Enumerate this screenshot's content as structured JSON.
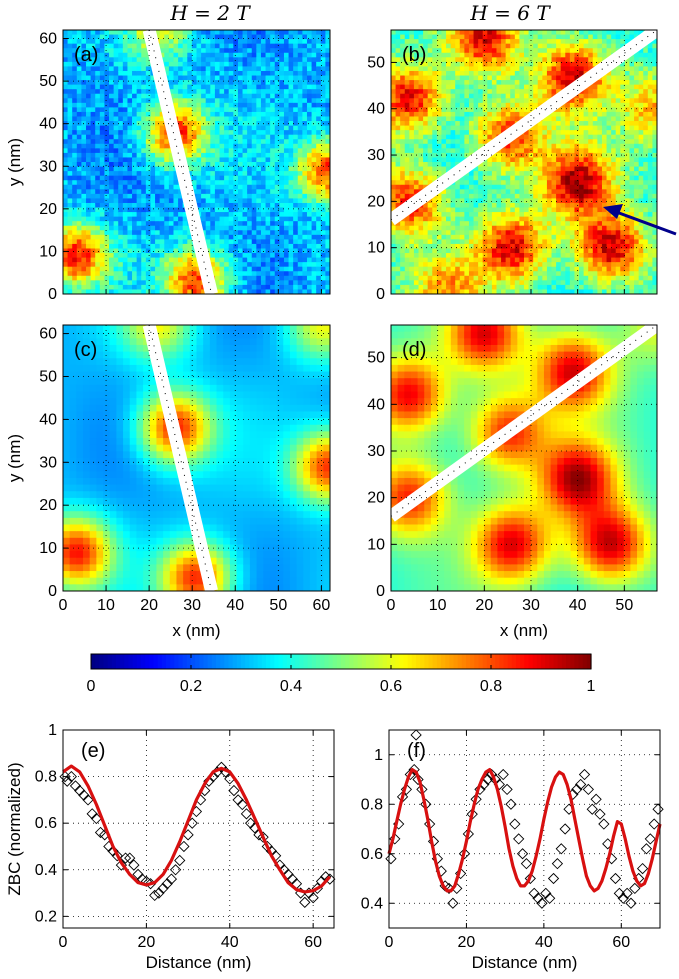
{
  "column_titles": [
    "H = 2 T",
    "H = 6 T"
  ],
  "chart_data": [
    {
      "type": "heatmap",
      "panel_label": "(a)",
      "xlim": [
        0,
        62
      ],
      "ylim": [
        0,
        62
      ],
      "yticks": [
        0,
        10,
        20,
        30,
        40,
        50,
        60
      ],
      "ylabel": "y (nm)",
      "vortices": [
        [
          3,
          9,
          0.85
        ],
        [
          26,
          38,
          0.85
        ],
        [
          62,
          29,
          0.85
        ],
        [
          31,
          3,
          0.85
        ],
        [
          22,
          62,
          0.6
        ]
      ],
      "background": 0.3,
      "noise": true,
      "cut_line": [
        [
          20,
          62
        ],
        [
          34.5,
          0
        ]
      ],
      "grid": true
    },
    {
      "type": "heatmap",
      "panel_label": "(b)",
      "xlim": [
        0,
        57
      ],
      "ylim": [
        0,
        57
      ],
      "yticks": [
        0,
        10,
        20,
        30,
        40,
        50
      ],
      "vortices": [
        [
          4,
          42,
          0.9
        ],
        [
          20,
          55,
          0.9
        ],
        [
          39,
          47,
          0.9
        ],
        [
          25,
          34,
          0.85
        ],
        [
          40,
          24,
          0.95
        ],
        [
          4,
          20,
          0.85
        ],
        [
          47,
          10,
          0.95
        ],
        [
          26,
          10,
          0.9
        ],
        [
          12,
          1,
          0.7
        ],
        [
          57,
          40,
          0.7
        ]
      ],
      "background": 0.42,
      "noise": true,
      "cut_line": [
        [
          0,
          16
        ],
        [
          57,
          57
        ]
      ],
      "grid": true
    },
    {
      "type": "heatmap",
      "panel_label": "(c)",
      "xlim": [
        0,
        62
      ],
      "ylim": [
        0,
        62
      ],
      "xticks": [
        0,
        10,
        20,
        30,
        40,
        50,
        60
      ],
      "yticks": [
        0,
        10,
        20,
        30,
        40,
        50,
        60
      ],
      "xlabel": "x (nm)",
      "ylabel": "y (nm)",
      "vortices": [
        [
          3,
          9,
          0.85
        ],
        [
          26,
          38,
          0.85
        ],
        [
          62,
          29,
          0.85
        ],
        [
          31,
          3,
          0.85
        ],
        [
          22,
          62,
          0.6
        ],
        [
          60,
          62,
          0.6
        ]
      ],
      "background": 0.3,
      "noise": false,
      "cut_line": [
        [
          20,
          62
        ],
        [
          34.5,
          0
        ]
      ],
      "grid": true
    },
    {
      "type": "heatmap",
      "panel_label": "(d)",
      "xlim": [
        0,
        57
      ],
      "ylim": [
        0,
        57
      ],
      "xticks": [
        0,
        10,
        20,
        30,
        40,
        50
      ],
      "yticks": [
        0,
        10,
        20,
        30,
        40,
        50
      ],
      "xlabel": "x (nm)",
      "vortices": [
        [
          4,
          42,
          0.9
        ],
        [
          20,
          55,
          0.9
        ],
        [
          39,
          47,
          0.9
        ],
        [
          25,
          34,
          0.85
        ],
        [
          40,
          24,
          0.95
        ],
        [
          4,
          20,
          0.85
        ],
        [
          47,
          10,
          0.95
        ],
        [
          26,
          10,
          0.9
        ],
        [
          57,
          57,
          0.6
        ]
      ],
      "background": 0.42,
      "noise": false,
      "cut_line": [
        [
          0,
          16
        ],
        [
          57,
          57
        ]
      ],
      "grid": true
    },
    {
      "type": "colorbar",
      "colormap": "jet",
      "range": [
        0,
        1
      ],
      "ticks": [
        0,
        0.2,
        0.4,
        0.6,
        0.8,
        1
      ]
    },
    {
      "type": "scatter",
      "panel_label": "(e)",
      "xlabel": "Distance (nm)",
      "ylabel": "ZBC (normalized)",
      "xlim": [
        0,
        65
      ],
      "ylim": [
        0.15,
        1.0
      ],
      "xticks": [
        0,
        20,
        40,
        60
      ],
      "yticks": [
        0.2,
        0.4,
        0.6,
        0.8,
        1
      ],
      "grid": true,
      "series": [
        {
          "style": "markers",
          "marker": "diamond",
          "color": "#000000",
          "x": [
            0.5,
            1,
            2,
            3,
            4,
            5,
            6,
            7,
            8,
            9,
            10,
            11,
            12,
            13,
            14,
            15,
            16,
            17,
            18,
            19,
            20,
            21,
            22,
            23,
            24,
            25,
            26,
            27,
            28,
            29,
            30,
            31,
            32,
            33,
            34,
            35,
            36,
            37,
            38,
            39,
            40,
            41,
            42,
            43,
            44,
            45,
            46,
            47,
            48,
            49,
            50,
            51,
            52,
            53,
            54,
            55,
            56,
            57,
            58,
            59,
            60,
            61,
            62,
            63,
            64
          ],
          "y": [
            0.8,
            0.78,
            0.8,
            0.76,
            0.74,
            0.72,
            0.7,
            0.64,
            0.62,
            0.56,
            0.55,
            0.5,
            0.48,
            0.46,
            0.42,
            0.45,
            0.45,
            0.42,
            0.38,
            0.36,
            0.35,
            0.34,
            0.29,
            0.3,
            0.32,
            0.34,
            0.36,
            0.4,
            0.44,
            0.5,
            0.55,
            0.6,
            0.65,
            0.7,
            0.74,
            0.78,
            0.8,
            0.82,
            0.84,
            0.82,
            0.79,
            0.74,
            0.7,
            0.68,
            0.64,
            0.6,
            0.58,
            0.55,
            0.54,
            0.5,
            0.48,
            0.46,
            0.42,
            0.4,
            0.38,
            0.36,
            0.34,
            0.3,
            0.26,
            0.3,
            0.28,
            0.32,
            0.35,
            0.37,
            0.36
          ]
        },
        {
          "style": "line",
          "color": "#d81010",
          "x": [
            0,
            2,
            4,
            6,
            8,
            10,
            12,
            14,
            16,
            18,
            20,
            22,
            24,
            26,
            28,
            30,
            32,
            34,
            36,
            38,
            40,
            42,
            44,
            46,
            48,
            50,
            52,
            54,
            56,
            58,
            60,
            62,
            64
          ],
          "y": [
            0.82,
            0.845,
            0.82,
            0.76,
            0.68,
            0.59,
            0.5,
            0.43,
            0.38,
            0.345,
            0.335,
            0.345,
            0.38,
            0.44,
            0.52,
            0.61,
            0.7,
            0.77,
            0.82,
            0.835,
            0.82,
            0.77,
            0.7,
            0.62,
            0.54,
            0.46,
            0.4,
            0.345,
            0.315,
            0.305,
            0.31,
            0.33,
            0.37
          ]
        }
      ]
    },
    {
      "type": "scatter",
      "panel_label": "(f)",
      "xlabel": "Distance (nm)",
      "xlim": [
        0,
        70
      ],
      "ylim": [
        0.3,
        1.1
      ],
      "xticks": [
        0,
        20,
        40,
        60
      ],
      "yticks": [
        0.4,
        0.6,
        0.8,
        1
      ],
      "grid": true,
      "series": [
        {
          "style": "markers",
          "marker": "diamond",
          "color": "#000000",
          "x": [
            0.5,
            1.5,
            2.5,
            3.5,
            4.5,
            5.5,
            6.5,
            7.5,
            8.5,
            9.5,
            10.5,
            11.5,
            12.5,
            13.5,
            14.5,
            15.5,
            16.5,
            17.5,
            18.5,
            19.5,
            20.5,
            21.5,
            22.5,
            23.5,
            24.5,
            25.5,
            26.5,
            27.5,
            28.5,
            29.5,
            30.5,
            31.5,
            32.5,
            33.5,
            34.5,
            35.5,
            36.5,
            37.5,
            38.5,
            39.5,
            40.5,
            41.5,
            42.5,
            43.5,
            44.5,
            45.5,
            46.5,
            47.5,
            48.5,
            49.5,
            50.5,
            51.5,
            52.5,
            53.5,
            54.5,
            55.5,
            56.5,
            57.5,
            58.5,
            59.5,
            60.5,
            61.5,
            62.5,
            63.5,
            64.5,
            65.5,
            66.5,
            67.5,
            68.5,
            69.5,
            7
          ],
          "y": [
            0.58,
            0.66,
            0.72,
            0.83,
            0.86,
            0.92,
            0.94,
            0.9,
            0.86,
            0.8,
            0.72,
            0.65,
            0.58,
            0.53,
            0.47,
            0.46,
            0.4,
            0.46,
            0.52,
            0.6,
            0.68,
            0.76,
            0.82,
            0.86,
            0.88,
            0.9,
            0.92,
            0.9,
            0.88,
            0.92,
            0.86,
            0.8,
            0.72,
            0.66,
            0.6,
            0.56,
            0.5,
            0.44,
            0.42,
            0.4,
            0.44,
            0.42,
            0.5,
            0.56,
            0.62,
            0.7,
            0.78,
            0.84,
            0.86,
            0.88,
            0.92,
            0.86,
            0.78,
            0.82,
            0.76,
            0.72,
            0.64,
            0.58,
            0.5,
            0.44,
            0.42,
            0.44,
            0.4,
            0.46,
            0.5,
            0.54,
            0.62,
            0.66,
            0.72,
            0.78,
            1.08
          ]
        },
        {
          "style": "line",
          "color": "#d81010",
          "x": [
            0,
            1,
            2,
            3,
            4,
            5,
            6,
            7,
            8,
            9,
            10,
            11,
            12,
            13,
            14,
            15,
            16,
            17,
            18,
            19,
            20,
            21,
            22,
            23,
            24,
            25,
            26,
            27,
            28,
            29,
            30,
            31,
            32,
            33,
            34,
            35,
            36,
            37,
            38,
            39,
            40,
            41,
            42,
            43,
            44,
            45,
            46,
            47,
            48,
            49,
            50,
            51,
            52,
            53,
            54,
            55,
            56,
            57,
            58,
            59,
            60,
            61,
            62,
            63,
            64,
            65,
            66,
            67,
            68,
            69,
            70
          ],
          "y": [
            0.6,
            0.66,
            0.73,
            0.8,
            0.86,
            0.91,
            0.94,
            0.93,
            0.89,
            0.82,
            0.74,
            0.65,
            0.57,
            0.51,
            0.47,
            0.45,
            0.45,
            0.47,
            0.52,
            0.58,
            0.65,
            0.73,
            0.8,
            0.86,
            0.9,
            0.93,
            0.94,
            0.91,
            0.86,
            0.79,
            0.71,
            0.62,
            0.55,
            0.5,
            0.47,
            0.47,
            0.49,
            0.53,
            0.59,
            0.66,
            0.74,
            0.81,
            0.87,
            0.91,
            0.93,
            0.92,
            0.88,
            0.82,
            0.74,
            0.66,
            0.58,
            0.51,
            0.47,
            0.45,
            0.46,
            0.49,
            0.54,
            0.6,
            0.67,
            0.73,
            0.72,
            0.66,
            0.59,
            0.53,
            0.49,
            0.47,
            0.48,
            0.52,
            0.58,
            0.65,
            0.72
          ]
        }
      ]
    }
  ]
}
